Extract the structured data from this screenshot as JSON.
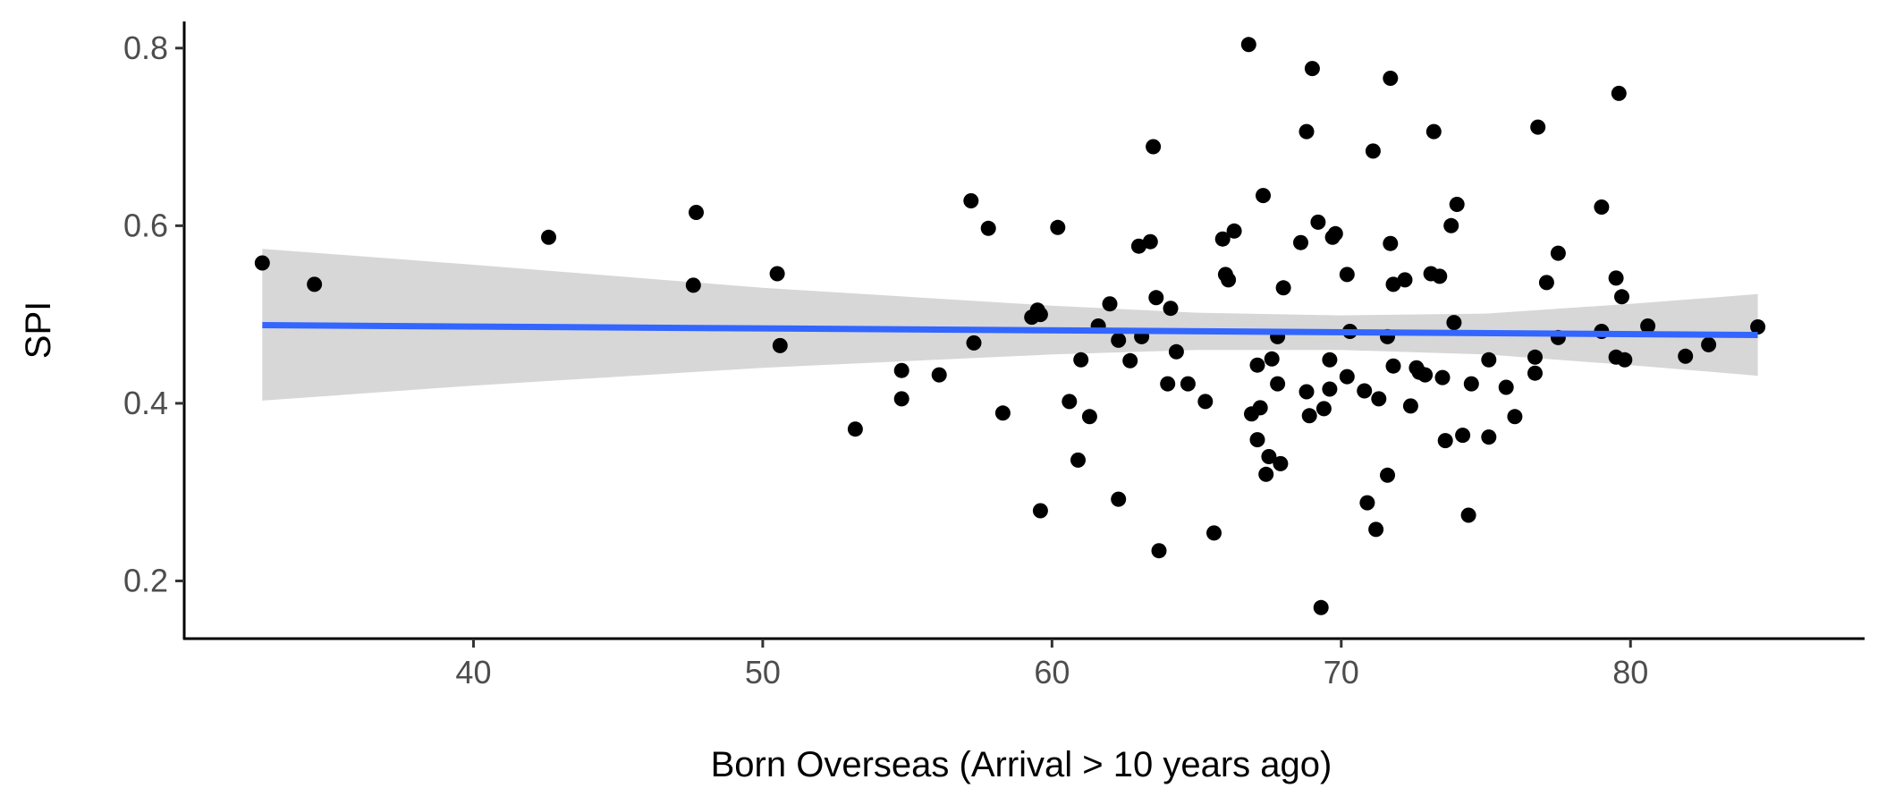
{
  "chart_data": {
    "type": "scatter",
    "xlabel": "Born Overseas (Arrival > 10 years ago)",
    "ylabel": "SPI",
    "xlim": [
      30,
      88
    ],
    "ylim": [
      0.135,
      0.83
    ],
    "x_ticks": [
      40,
      50,
      60,
      70,
      80
    ],
    "x_tick_labels": [
      "40",
      "50",
      "60",
      "70",
      "80"
    ],
    "y_ticks": [
      0.2,
      0.4,
      0.6,
      0.8
    ],
    "y_tick_labels": [
      "0.2",
      "0.4",
      "0.6",
      "0.8"
    ],
    "grid": false,
    "legend": "none",
    "colors": {
      "points": "#000000",
      "trend_line": "#3366ff",
      "confidence_band": "#d3d3d3",
      "axis": "#000000",
      "tick_text": "#4d4d4d"
    },
    "trend": {
      "method": "linear",
      "x": [
        32.7,
        84.4
      ],
      "y": [
        0.488,
        0.477
      ],
      "band_x": [
        32.7,
        40,
        50,
        60,
        65,
        70,
        75,
        80,
        84.4
      ],
      "band_lower": [
        0.403,
        0.42,
        0.44,
        0.455,
        0.46,
        0.46,
        0.455,
        0.443,
        0.431
      ],
      "band_upper": [
        0.574,
        0.556,
        0.53,
        0.51,
        0.502,
        0.499,
        0.501,
        0.512,
        0.523
      ]
    },
    "points": [
      {
        "x": 32.7,
        "y": 0.558
      },
      {
        "x": 34.5,
        "y": 0.534
      },
      {
        "x": 42.6,
        "y": 0.587
      },
      {
        "x": 47.6,
        "y": 0.533
      },
      {
        "x": 47.7,
        "y": 0.615
      },
      {
        "x": 50.5,
        "y": 0.546
      },
      {
        "x": 50.6,
        "y": 0.465
      },
      {
        "x": 53.2,
        "y": 0.371
      },
      {
        "x": 54.8,
        "y": 0.437
      },
      {
        "x": 54.8,
        "y": 0.405
      },
      {
        "x": 56.1,
        "y": 0.432
      },
      {
        "x": 57.2,
        "y": 0.628
      },
      {
        "x": 57.3,
        "y": 0.468
      },
      {
        "x": 57.8,
        "y": 0.597
      },
      {
        "x": 58.3,
        "y": 0.389
      },
      {
        "x": 59.3,
        "y": 0.497
      },
      {
        "x": 59.5,
        "y": 0.505
      },
      {
        "x": 59.6,
        "y": 0.5
      },
      {
        "x": 59.6,
        "y": 0.279
      },
      {
        "x": 60.2,
        "y": 0.598
      },
      {
        "x": 60.6,
        "y": 0.402
      },
      {
        "x": 60.9,
        "y": 0.336
      },
      {
        "x": 61.0,
        "y": 0.449
      },
      {
        "x": 61.3,
        "y": 0.385
      },
      {
        "x": 61.6,
        "y": 0.487
      },
      {
        "x": 62.0,
        "y": 0.512
      },
      {
        "x": 62.3,
        "y": 0.292
      },
      {
        "x": 62.3,
        "y": 0.471
      },
      {
        "x": 62.7,
        "y": 0.448
      },
      {
        "x": 63.0,
        "y": 0.577
      },
      {
        "x": 63.1,
        "y": 0.475
      },
      {
        "x": 63.4,
        "y": 0.582
      },
      {
        "x": 63.5,
        "y": 0.689
      },
      {
        "x": 63.6,
        "y": 0.519
      },
      {
        "x": 63.7,
        "y": 0.234
      },
      {
        "x": 64.0,
        "y": 0.422
      },
      {
        "x": 64.1,
        "y": 0.507
      },
      {
        "x": 64.3,
        "y": 0.458
      },
      {
        "x": 64.7,
        "y": 0.422
      },
      {
        "x": 65.3,
        "y": 0.402
      },
      {
        "x": 65.6,
        "y": 0.254
      },
      {
        "x": 65.9,
        "y": 0.585
      },
      {
        "x": 66.0,
        "y": 0.545
      },
      {
        "x": 66.1,
        "y": 0.539
      },
      {
        "x": 66.3,
        "y": 0.594
      },
      {
        "x": 66.8,
        "y": 0.804
      },
      {
        "x": 66.9,
        "y": 0.388
      },
      {
        "x": 67.1,
        "y": 0.443
      },
      {
        "x": 67.1,
        "y": 0.359
      },
      {
        "x": 67.2,
        "y": 0.395
      },
      {
        "x": 67.3,
        "y": 0.634
      },
      {
        "x": 67.4,
        "y": 0.32
      },
      {
        "x": 67.5,
        "y": 0.34
      },
      {
        "x": 67.6,
        "y": 0.45
      },
      {
        "x": 67.8,
        "y": 0.475
      },
      {
        "x": 67.8,
        "y": 0.422
      },
      {
        "x": 67.9,
        "y": 0.332
      },
      {
        "x": 68.0,
        "y": 0.53
      },
      {
        "x": 68.6,
        "y": 0.581
      },
      {
        "x": 68.8,
        "y": 0.413
      },
      {
        "x": 68.8,
        "y": 0.706
      },
      {
        "x": 68.9,
        "y": 0.386
      },
      {
        "x": 69.0,
        "y": 0.777
      },
      {
        "x": 69.2,
        "y": 0.604
      },
      {
        "x": 69.3,
        "y": 0.17
      },
      {
        "x": 69.4,
        "y": 0.394
      },
      {
        "x": 69.6,
        "y": 0.449
      },
      {
        "x": 69.6,
        "y": 0.416
      },
      {
        "x": 69.7,
        "y": 0.587
      },
      {
        "x": 69.8,
        "y": 0.591
      },
      {
        "x": 70.2,
        "y": 0.43
      },
      {
        "x": 70.2,
        "y": 0.545
      },
      {
        "x": 70.3,
        "y": 0.481
      },
      {
        "x": 70.8,
        "y": 0.414
      },
      {
        "x": 70.9,
        "y": 0.288
      },
      {
        "x": 71.1,
        "y": 0.684
      },
      {
        "x": 71.2,
        "y": 0.258
      },
      {
        "x": 71.3,
        "y": 0.405
      },
      {
        "x": 71.6,
        "y": 0.475
      },
      {
        "x": 71.6,
        "y": 0.319
      },
      {
        "x": 71.7,
        "y": 0.766
      },
      {
        "x": 71.7,
        "y": 0.58
      },
      {
        "x": 71.8,
        "y": 0.534
      },
      {
        "x": 71.8,
        "y": 0.442
      },
      {
        "x": 72.2,
        "y": 0.539
      },
      {
        "x": 72.4,
        "y": 0.397
      },
      {
        "x": 72.6,
        "y": 0.44
      },
      {
        "x": 72.7,
        "y": 0.435
      },
      {
        "x": 72.9,
        "y": 0.432
      },
      {
        "x": 73.1,
        "y": 0.546
      },
      {
        "x": 73.2,
        "y": 0.706
      },
      {
        "x": 73.4,
        "y": 0.543
      },
      {
        "x": 73.5,
        "y": 0.429
      },
      {
        "x": 73.6,
        "y": 0.358
      },
      {
        "x": 73.8,
        "y": 0.6
      },
      {
        "x": 73.9,
        "y": 0.491
      },
      {
        "x": 74.0,
        "y": 0.624
      },
      {
        "x": 74.2,
        "y": 0.364
      },
      {
        "x": 74.4,
        "y": 0.274
      },
      {
        "x": 74.5,
        "y": 0.422
      },
      {
        "x": 75.1,
        "y": 0.362
      },
      {
        "x": 75.1,
        "y": 0.449
      },
      {
        "x": 75.7,
        "y": 0.418
      },
      {
        "x": 76.0,
        "y": 0.385
      },
      {
        "x": 76.7,
        "y": 0.452
      },
      {
        "x": 76.7,
        "y": 0.434
      },
      {
        "x": 76.8,
        "y": 0.711
      },
      {
        "x": 77.1,
        "y": 0.536
      },
      {
        "x": 77.5,
        "y": 0.569
      },
      {
        "x": 77.5,
        "y": 0.474
      },
      {
        "x": 79.0,
        "y": 0.621
      },
      {
        "x": 79.0,
        "y": 0.481
      },
      {
        "x": 79.5,
        "y": 0.541
      },
      {
        "x": 79.5,
        "y": 0.452
      },
      {
        "x": 79.6,
        "y": 0.749
      },
      {
        "x": 79.7,
        "y": 0.52
      },
      {
        "x": 79.8,
        "y": 0.449
      },
      {
        "x": 80.6,
        "y": 0.487
      },
      {
        "x": 81.9,
        "y": 0.453
      },
      {
        "x": 82.7,
        "y": 0.466
      },
      {
        "x": 84.4,
        "y": 0.486
      }
    ]
  }
}
